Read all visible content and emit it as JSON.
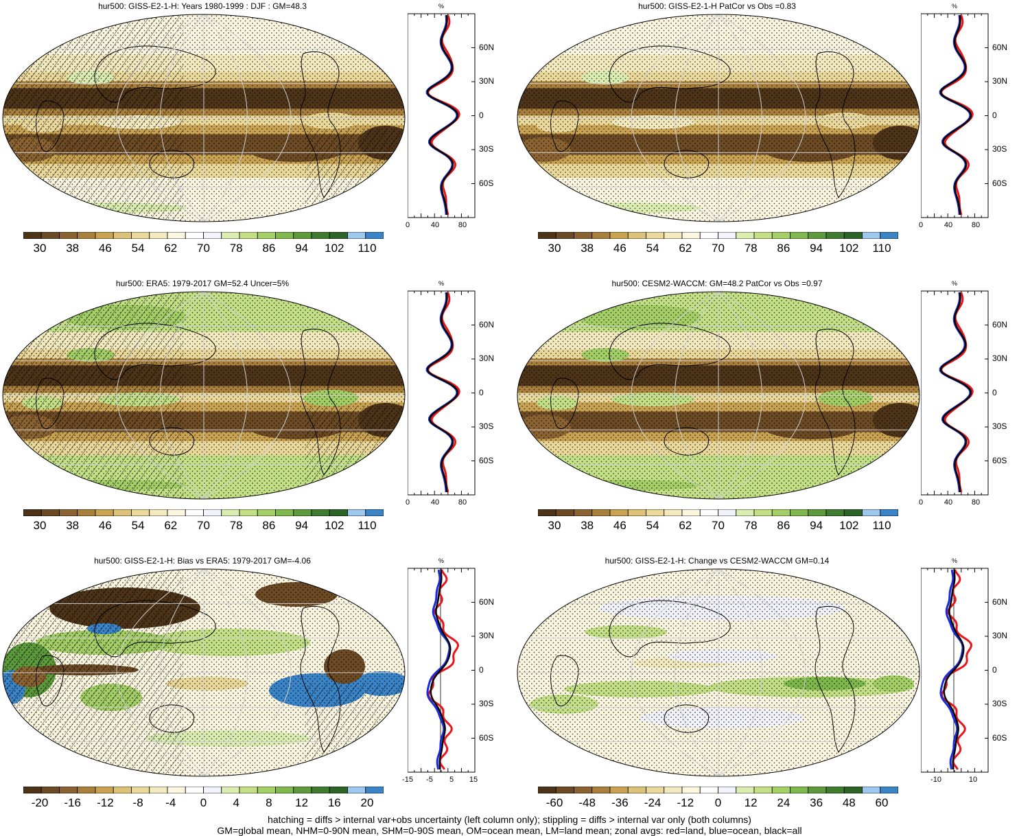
{
  "colors": {
    "brown_scale": [
      "#4d3318",
      "#6b4a24",
      "#8b6332",
      "#a97f3c",
      "#c9a352",
      "#ddc27a",
      "#ebd99b",
      "#f4eabf",
      "#fbf6e0",
      "#ffffff",
      "#f3f4fb",
      "#dcedb2",
      "#c3e087",
      "#a3cf66",
      "#7fb84d",
      "#5c9a3c",
      "#3f7c2f",
      "#2c6427",
      "#9dc9ee",
      "#3a84c8"
    ],
    "red": "#e8141c",
    "blue": "#1a2ae0",
    "black": "#000000",
    "grid": "#d0d0d0"
  },
  "panels": [
    {
      "id": "p1",
      "title": "hur500: GISS-E2-1-H: Years 1980-1999 : DJF : GM=48.3",
      "kind": "climatology",
      "hatched": true,
      "colorbar_labels": [
        "30",
        "38",
        "46",
        "54",
        "62",
        "70",
        "78",
        "86",
        "94",
        "102",
        "110"
      ],
      "profile_ticks": [
        "0",
        "40",
        "80"
      ],
      "profile_unit": "%",
      "lat_labels": [
        "60N",
        "30N",
        "0",
        "30S",
        "60S"
      ]
    },
    {
      "id": "p2",
      "title": "hur500: GISS-E2-1-H PatCor vs Obs =0.83",
      "kind": "climatology",
      "hatched": false,
      "colorbar_labels": [
        "30",
        "38",
        "46",
        "54",
        "62",
        "70",
        "78",
        "86",
        "94",
        "102",
        "110"
      ],
      "profile_ticks": [
        "0",
        "40",
        "80"
      ],
      "profile_unit": "%",
      "lat_labels": [
        "60N",
        "30N",
        "0",
        "30S",
        "60S"
      ]
    },
    {
      "id": "p3",
      "title": "hur500: ERA5: 1979-2017 GM=52.4 Uncer=5%",
      "kind": "obs",
      "hatched": true,
      "colorbar_labels": [
        "30",
        "38",
        "46",
        "54",
        "62",
        "70",
        "78",
        "86",
        "94",
        "102",
        "110"
      ],
      "profile_ticks": [
        "0",
        "40",
        "80"
      ],
      "profile_unit": "%",
      "lat_labels": [
        "60N",
        "30N",
        "0",
        "30S",
        "60S"
      ]
    },
    {
      "id": "p4",
      "title": "hur500: CESM2-WACCM: GM=48.2 PatCor vs Obs =0.97",
      "kind": "obs",
      "hatched": false,
      "colorbar_labels": [
        "30",
        "38",
        "46",
        "54",
        "62",
        "70",
        "78",
        "86",
        "94",
        "102",
        "110"
      ],
      "profile_ticks": [
        "0",
        "40",
        "80"
      ],
      "profile_unit": "%",
      "lat_labels": [
        "60N",
        "30N",
        "0",
        "30S",
        "60S"
      ]
    },
    {
      "id": "p5",
      "title": "hur500: GISS-E2-1-H: Bias vs ERA5: 1979-2017 GM=-4.06",
      "kind": "bias",
      "hatched": true,
      "colorbar_labels": [
        "-20",
        "-16",
        "-12",
        "-8",
        "-4",
        "0",
        "4",
        "8",
        "12",
        "16",
        "20"
      ],
      "profile_ticks": [
        "-15",
        "-5",
        "5",
        "15"
      ],
      "profile_unit": "%",
      "lat_labels": [
        "60N",
        "30N",
        "0",
        "30S",
        "60S"
      ]
    },
    {
      "id": "p6",
      "title": "hur500: GISS-E2-1-H: Change vs CESM2-WACCM GM=0.14",
      "kind": "change",
      "hatched": false,
      "colorbar_labels": [
        "-60",
        "-48",
        "-36",
        "-24",
        "-12",
        "0",
        "12",
        "24",
        "36",
        "48",
        "60"
      ],
      "profile_ticks": [
        "-10",
        "10"
      ],
      "profile_unit": "%",
      "lat_labels": [
        "60N",
        "30N",
        "0",
        "30S",
        "60S"
      ]
    }
  ],
  "footer": {
    "line1": "hatching = diffs > internal var+obs uncertainty (left column only); stippling = diffs > internal var only (both columns)",
    "line2": "GM=global mean, NHM=0-90N mean, SHM=0-90S mean, OM=ocean mean, LM=land mean; zonal avgs: red=land, blue=ocean, black=all"
  }
}
